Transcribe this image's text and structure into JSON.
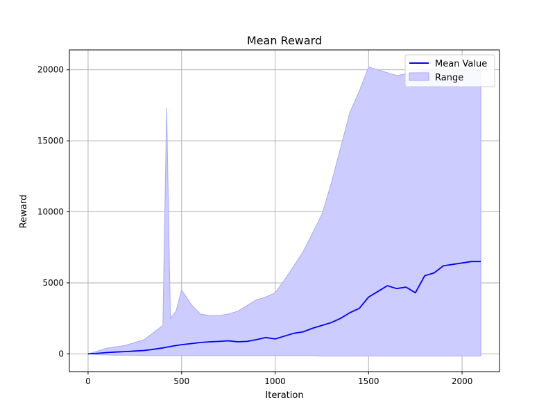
{
  "chart_data": {
    "type": "line",
    "title": "Mean Reward",
    "xlabel": "Iteration",
    "ylabel": "Reward",
    "xlim": [
      -100,
      2200
    ],
    "ylim": [
      -1250,
      21400
    ],
    "xticks": [
      0,
      500,
      1000,
      1500,
      2000
    ],
    "yticks": [
      0,
      5000,
      10000,
      15000,
      20000
    ],
    "xtick_labels": [
      "0",
      "500",
      "1000",
      "1500",
      "2000"
    ],
    "ytick_labels": [
      "0",
      "5000",
      "10000",
      "15000",
      "20000"
    ],
    "grid": true,
    "legend": {
      "placement": "top-right",
      "entries": [
        "Mean Value",
        "Range"
      ]
    },
    "colors": {
      "mean": "#0000ff",
      "range_fill": "#ccccff",
      "range_edge": "#a8a8ff",
      "grid": "#b0b0b0"
    },
    "series": [
      {
        "name": "Mean Value",
        "kind": "line",
        "x": [
          0,
          50,
          100,
          150,
          200,
          250,
          300,
          350,
          400,
          450,
          500,
          550,
          600,
          650,
          700,
          750,
          800,
          850,
          900,
          950,
          1000,
          1050,
          1100,
          1150,
          1200,
          1250,
          1300,
          1350,
          1400,
          1450,
          1500,
          1550,
          1600,
          1650,
          1700,
          1750,
          1800,
          1850,
          1900,
          1950,
          2000,
          2050,
          2100
        ],
        "y": [
          0,
          40,
          90,
          130,
          160,
          200,
          240,
          320,
          420,
          540,
          650,
          720,
          800,
          850,
          880,
          920,
          850,
          880,
          1000,
          1150,
          1050,
          1250,
          1450,
          1550,
          1800,
          2000,
          2200,
          2500,
          2900,
          3200,
          4000,
          4400,
          4800,
          4600,
          4700,
          4300,
          5500,
          5700,
          6200,
          6300,
          6400,
          6500,
          6500
        ]
      },
      {
        "name": "Range",
        "kind": "band",
        "x": [
          0,
          50,
          100,
          150,
          200,
          250,
          300,
          350,
          400,
          420,
          440,
          470,
          500,
          550,
          600,
          650,
          700,
          750,
          800,
          850,
          900,
          950,
          1000,
          1050,
          1100,
          1150,
          1200,
          1250,
          1300,
          1350,
          1400,
          1450,
          1500,
          1550,
          1600,
          1650,
          1700,
          1750,
          1800,
          1850,
          1900,
          1950,
          2000,
          2050,
          2100
        ],
        "min": [
          0,
          -50,
          -80,
          -100,
          -100,
          -100,
          -120,
          -120,
          -120,
          -120,
          -120,
          -120,
          -120,
          -120,
          -120,
          -120,
          -120,
          -120,
          -120,
          -120,
          -120,
          -120,
          -120,
          -120,
          -120,
          -120,
          -120,
          -150,
          -150,
          -150,
          -150,
          -150,
          -150,
          -150,
          -150,
          -150,
          -150,
          -150,
          -150,
          -150,
          -150,
          -150,
          -150,
          -150,
          -150
        ],
        "max": [
          0,
          200,
          400,
          500,
          600,
          800,
          1000,
          1500,
          2000,
          17300,
          2500,
          3000,
          4500,
          3500,
          2800,
          2700,
          2700,
          2800,
          3000,
          3400,
          3800,
          4000,
          4300,
          5200,
          6200,
          7200,
          8500,
          9800,
          12000,
          14500,
          17000,
          18500,
          20200,
          20000,
          19800,
          19600,
          19700,
          19800,
          19900,
          20000,
          20000,
          20000,
          20000,
          20000,
          20000
        ]
      }
    ]
  }
}
